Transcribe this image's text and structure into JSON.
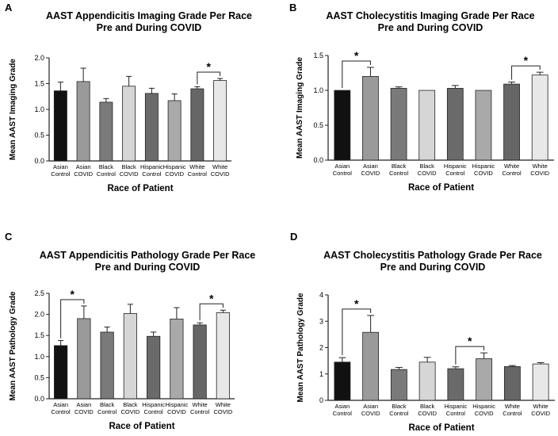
{
  "chart_data": [
    {
      "panel": "A",
      "type": "bar",
      "title": "AAST Appendicitis Imaging Grade Per Race",
      "subtitle": "Pre and During COVID",
      "ylabel": "Mean AAST Imaging Grade",
      "xlabel": "Race of Patient",
      "ylim": [
        0,
        2.0
      ],
      "yticks": [
        "0.0",
        "0.5",
        "1.0",
        "1.5",
        "2.0"
      ],
      "categories": [
        [
          "Asian",
          "Control"
        ],
        [
          "Asian",
          "COVID"
        ],
        [
          "Black",
          "Control"
        ],
        [
          "Black",
          "COVID"
        ],
        [
          "Hispanic",
          "Control"
        ],
        [
          "Hispanic",
          "COVID"
        ],
        [
          "White",
          "Control"
        ],
        [
          "White",
          "COVID"
        ]
      ],
      "values": [
        1.36,
        1.54,
        1.14,
        1.45,
        1.31,
        1.17,
        1.4,
        1.56
      ],
      "errors": [
        0.17,
        0.26,
        0.07,
        0.19,
        0.1,
        0.13,
        0.04,
        0.04
      ],
      "colors": [
        "#111111",
        "#9a9a9a",
        "#7a7a7a",
        "#d6d6d6",
        "#6a6a6a",
        "#a9a9a9",
        "#666666",
        "#e8e8e8"
      ],
      "significance": [
        {
          "pair": [
            6,
            7
          ],
          "label": "*"
        }
      ]
    },
    {
      "panel": "B",
      "type": "bar",
      "title": "AAST Cholecystitis Imaging Grade Per Race",
      "subtitle": "Pre and During COVID",
      "ylabel": "Mean AAST Imaging Grade",
      "xlabel": "Race of Patient",
      "ylim": [
        0,
        1.5
      ],
      "yticks": [
        "0.0",
        "0.5",
        "1.0",
        "1.5"
      ],
      "categories": [
        [
          "Asian",
          "Control"
        ],
        [
          "Asian",
          "COVID"
        ],
        [
          "Black",
          "Control"
        ],
        [
          "Black",
          "COVID"
        ],
        [
          "Hispanic",
          "Control"
        ],
        [
          "Hispanic",
          "COVID"
        ],
        [
          "White",
          "Control"
        ],
        [
          "White",
          "COVID"
        ]
      ],
      "values": [
        1.0,
        1.2,
        1.03,
        1.0,
        1.03,
        1.0,
        1.09,
        1.22
      ],
      "errors": [
        0.0,
        0.13,
        0.02,
        0.0,
        0.04,
        0.0,
        0.03,
        0.04
      ],
      "colors": [
        "#111111",
        "#9a9a9a",
        "#7a7a7a",
        "#d6d6d6",
        "#6a6a6a",
        "#a9a9a9",
        "#666666",
        "#e8e8e8"
      ],
      "significance": [
        {
          "pair": [
            0,
            1
          ],
          "label": "*"
        },
        {
          "pair": [
            6,
            7
          ],
          "label": "*"
        }
      ]
    },
    {
      "panel": "C",
      "type": "bar",
      "title": "AAST Appendicitis Pathology Grade Per Race",
      "subtitle": "Pre and During COVID",
      "ylabel": "Mean AAST Pathology Grade",
      "xlabel": "Race of Patient",
      "ylim": [
        0,
        2.5
      ],
      "yticks": [
        "0.0",
        "0.5",
        "1.0",
        "1.5",
        "2.0",
        "2.5"
      ],
      "categories": [
        [
          "Asian",
          "Control"
        ],
        [
          "Asian",
          "COVID"
        ],
        [
          "Black",
          "Control"
        ],
        [
          "Black",
          "COVID"
        ],
        [
          "Hispanic",
          "Control"
        ],
        [
          "Hispanic",
          "COVID"
        ],
        [
          "White",
          "Control"
        ],
        [
          "White",
          "COVID"
        ]
      ],
      "values": [
        1.26,
        1.9,
        1.58,
        2.02,
        1.48,
        1.89,
        1.75,
        2.04
      ],
      "errors": [
        0.12,
        0.3,
        0.12,
        0.22,
        0.1,
        0.27,
        0.05,
        0.06
      ],
      "colors": [
        "#111111",
        "#9a9a9a",
        "#7a7a7a",
        "#d6d6d6",
        "#6a6a6a",
        "#a9a9a9",
        "#666666",
        "#e8e8e8"
      ],
      "significance": [
        {
          "pair": [
            0,
            1
          ],
          "label": "*"
        },
        {
          "pair": [
            6,
            7
          ],
          "label": "*"
        }
      ]
    },
    {
      "panel": "D",
      "type": "bar",
      "title": "AAST Cholecystitis Pathology Grade Per Race",
      "subtitle": "Pre and During COVID",
      "ylabel": "Mean AAST Pathology Grade",
      "xlabel": "Race of Patient",
      "ylim": [
        0,
        4
      ],
      "yticks": [
        "0",
        "1",
        "2",
        "3",
        "4"
      ],
      "categories": [
        [
          "Asian",
          "Control"
        ],
        [
          "Asian",
          "COVID"
        ],
        [
          "Black",
          "Control"
        ],
        [
          "Black",
          "COVID"
        ],
        [
          "Hispanic",
          "Control"
        ],
        [
          "Hispanic",
          "COVID"
        ],
        [
          "White",
          "Control"
        ],
        [
          "White",
          "COVID"
        ]
      ],
      "values": [
        1.45,
        2.58,
        1.17,
        1.45,
        1.2,
        1.58,
        1.28,
        1.38
      ],
      "errors": [
        0.17,
        0.64,
        0.08,
        0.18,
        0.07,
        0.22,
        0.04,
        0.05
      ],
      "colors": [
        "#111111",
        "#9a9a9a",
        "#7a7a7a",
        "#d6d6d6",
        "#6a6a6a",
        "#a9a9a9",
        "#666666",
        "#e8e8e8"
      ],
      "significance": [
        {
          "pair": [
            0,
            1
          ],
          "label": "*"
        },
        {
          "pair": [
            4,
            5
          ],
          "label": "*"
        }
      ]
    }
  ]
}
